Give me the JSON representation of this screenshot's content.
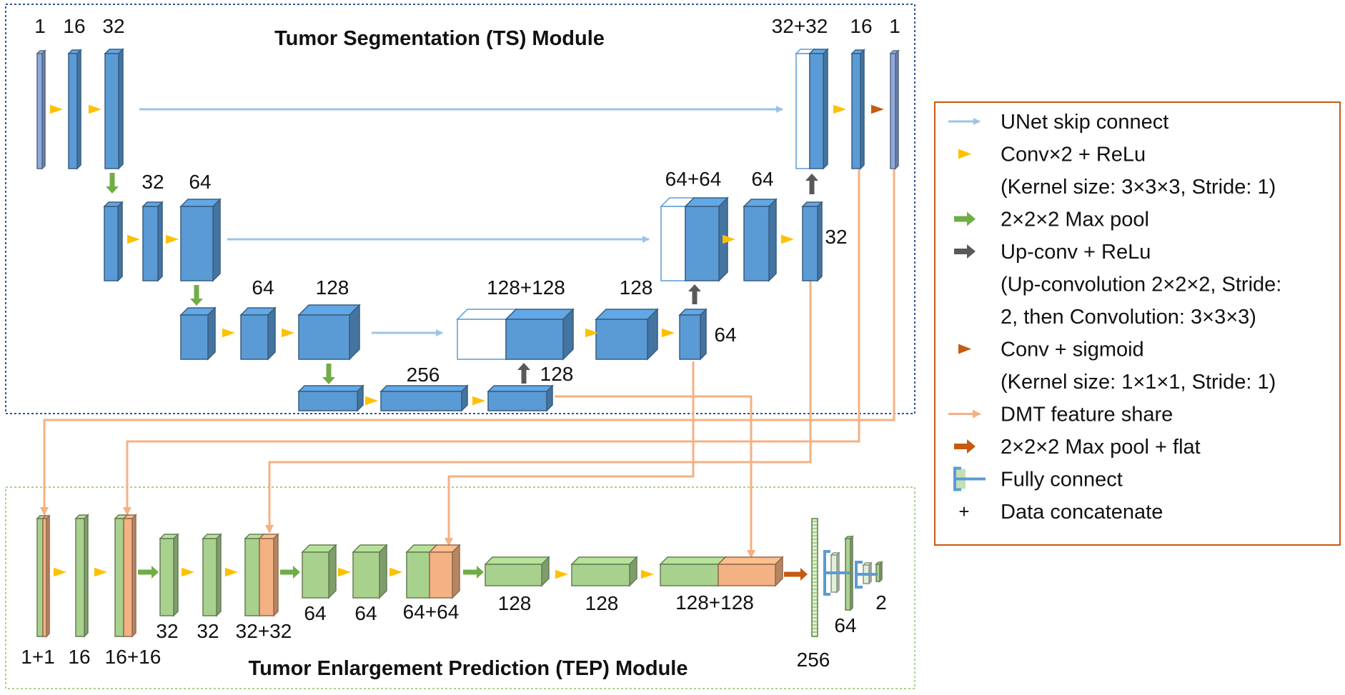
{
  "colors": {
    "ts_blue": "#5b9bd5",
    "tep_green": "#a9d18e",
    "dmt_orange": "#f4b183",
    "skip_arrow": "#9dc3e6",
    "conv_arrow": "#ffc000",
    "pool_arrow": "#70ad47",
    "upconv_arrow": "#595959",
    "sigmoid_arrow": "#c55a11",
    "fc_stroke": "#5b9bd5",
    "ts_border": "#2e5597",
    "tep_border": "#a9d18e",
    "legend_border": "#c55a11"
  },
  "modules": {
    "ts_title": "Tumor Segmentation (TS) Module",
    "tep_title": "Tumor Enlargement Prediction (TEP) Module"
  },
  "ts_labels": {
    "l1_a": "1",
    "l1_b": "16",
    "l1_c": "32",
    "l1_d": "32+32",
    "l1_e": "16",
    "l1_f": "1",
    "l2_a": "32",
    "l2_b": "64",
    "l2_c": "64+64",
    "l2_d": "64",
    "l2_e": "32",
    "l3_a": "64",
    "l3_b": "128",
    "l3_c": "128+128",
    "l3_d": "128",
    "l3_e": "64",
    "l4_a": "256",
    "l4_b": "128"
  },
  "tep_labels": {
    "t_a": "1+1",
    "t_b": "16",
    "t_c": "16+16",
    "t_d": "32",
    "t_e": "32",
    "t_f": "32+32",
    "t_g": "64",
    "t_h": "64",
    "t_i": "64+64",
    "t_j": "128",
    "t_k": "128",
    "t_l": "128+128",
    "t_m": "256",
    "t_n": "64",
    "t_o": "2"
  },
  "legend": {
    "items": [
      {
        "icon": "skip-arrow-icon",
        "lines": [
          "UNet skip connect"
        ]
      },
      {
        "icon": "conv-arrowhead-icon",
        "lines": [
          "Conv×2 + ReLu",
          "(Kernel size: 3×3×3, Stride: 1)"
        ]
      },
      {
        "icon": "maxpool-arrow-icon",
        "lines": [
          "2×2×2 Max pool"
        ]
      },
      {
        "icon": "upconv-arrow-icon",
        "lines": [
          "Up-conv + ReLu",
          "(Up-convolution 2×2×2, Stride:",
          "2, then Convolution: 3×3×3)"
        ]
      },
      {
        "icon": "sigmoid-arrowhead-icon",
        "lines": [
          "Conv + sigmoid",
          "(Kernel size: 1×1×1, Stride: 1)"
        ]
      },
      {
        "icon": "feature-share-arrow-icon",
        "lines": [
          "DMT feature share"
        ]
      },
      {
        "icon": "maxpool-flat-arrow-icon",
        "lines": [
          "2×2×2 Max pool + flat"
        ]
      },
      {
        "icon": "fully-connect-icon",
        "lines": [
          "Fully connect"
        ]
      },
      {
        "icon": "plus-icon",
        "lines": [
          "Data concatenate"
        ]
      }
    ],
    "plus_symbol": "+"
  }
}
